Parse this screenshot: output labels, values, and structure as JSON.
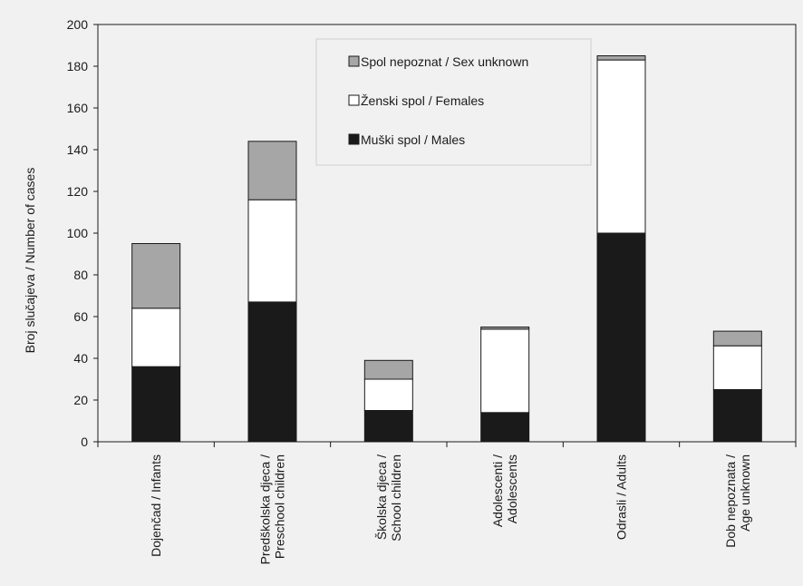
{
  "chart_data": {
    "type": "bar",
    "stacked": true,
    "title": "",
    "ylabel": "Broj slučajeva / Number of cases",
    "xlabel": "",
    "ylim": [
      0,
      200
    ],
    "yticks": [
      0,
      20,
      40,
      60,
      80,
      100,
      120,
      140,
      160,
      180,
      200
    ],
    "grid": false,
    "legend_position": "top-center",
    "categories": [
      [
        "Dojenčad / Infants"
      ],
      [
        "Predškolska djeca /",
        "Preschool children"
      ],
      [
        "Školska djeca /",
        "School children"
      ],
      [
        "Adolescenti /",
        "Adolescents"
      ],
      [
        "Odrasli / Adults"
      ],
      [
        "Dob nepoznata /",
        "Age  unknown"
      ]
    ],
    "series": [
      {
        "name": "Muški spol / Males",
        "color": "#1a1a1a",
        "values": [
          36,
          67,
          15,
          14,
          100,
          25
        ]
      },
      {
        "name": "Ženski spol / Females",
        "color": "#ffffff",
        "values": [
          28,
          49,
          15,
          40,
          83,
          21
        ]
      },
      {
        "name": "Spol nepoznat / Sex unknown",
        "color": "#a6a6a6",
        "values": [
          31,
          28,
          9,
          1,
          2,
          7
        ]
      }
    ],
    "legend_order": [
      2,
      1,
      0
    ]
  }
}
